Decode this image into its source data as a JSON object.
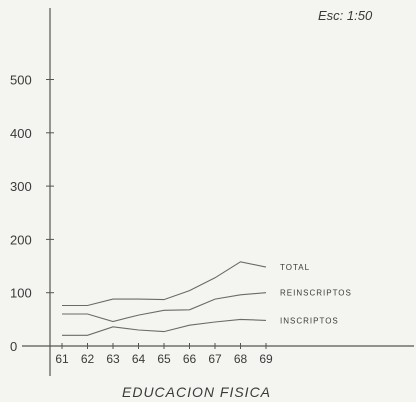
{
  "scale_note": "Esc: 1:50",
  "chart_data": {
    "type": "line",
    "title": "EDUCACION FISICA",
    "x": [
      "61",
      "62",
      "63",
      "64",
      "65",
      "66",
      "67",
      "68",
      "69"
    ],
    "series": [
      {
        "name": "TOTAL",
        "values": [
          76,
          76,
          88,
          88,
          87,
          104,
          128,
          158,
          148
        ]
      },
      {
        "name": "REINSCRIPTOS",
        "values": [
          60,
          60,
          46,
          58,
          67,
          68,
          88,
          96,
          100
        ]
      },
      {
        "name": "INSCRIPTOS",
        "values": [
          20,
          20,
          36,
          30,
          27,
          39,
          45,
          50,
          48
        ]
      }
    ],
    "yticks": [
      0,
      100,
      200,
      300,
      400,
      500
    ],
    "ylim": [
      0,
      600
    ],
    "grid": false
  },
  "colors": {
    "ink": "#3a3a3a",
    "line": "#6a6a6a"
  }
}
